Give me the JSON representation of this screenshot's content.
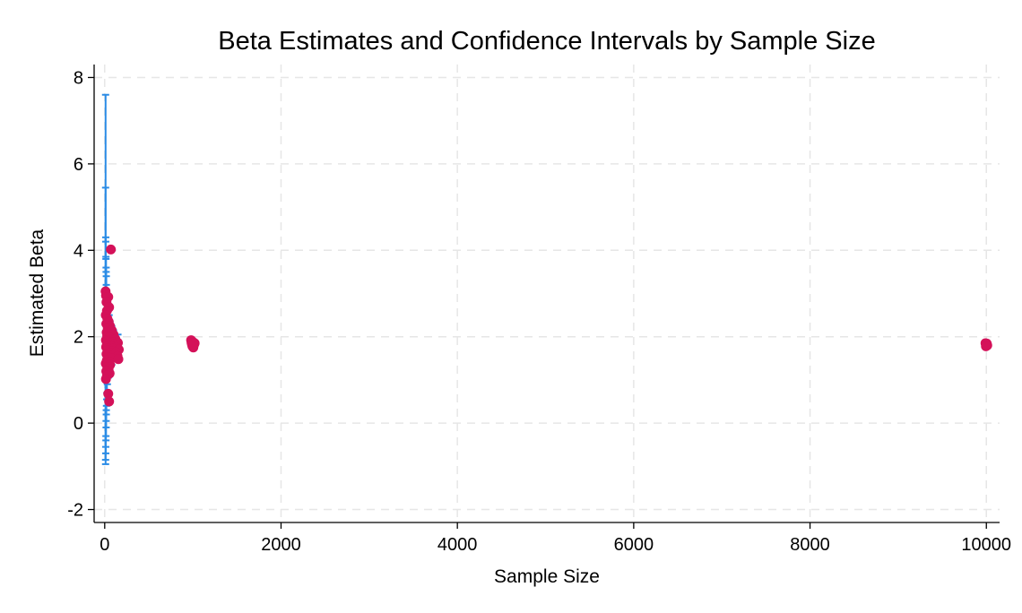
{
  "chart_data": {
    "type": "scatter",
    "title": "Beta Estimates and Confidence Intervals by Sample Size",
    "xlabel": "Sample Size",
    "ylabel": "Estimated Beta",
    "xlim": [
      -120,
      10150
    ],
    "ylim": [
      -2.3,
      8.3
    ],
    "xticks": [
      0,
      2000,
      4000,
      6000,
      8000,
      10000
    ],
    "yticks": [
      -2,
      0,
      2,
      4,
      6,
      8
    ],
    "grid": true,
    "colors": {
      "ci": "#2b8ce6",
      "point": "#d41159",
      "grid": "#e6e6e6"
    },
    "series": [
      {
        "type": "errorbar",
        "points": [
          {
            "x": 10,
            "lo": -0.95,
            "hi": 7.6
          },
          {
            "x": 10,
            "lo": -0.85,
            "hi": 5.45
          },
          {
            "x": 12,
            "lo": -0.7,
            "hi": 4.3
          },
          {
            "x": 12,
            "lo": -0.55,
            "hi": 4.2
          },
          {
            "x": 14,
            "lo": -0.4,
            "hi": 3.85
          },
          {
            "x": 14,
            "lo": -0.3,
            "hi": 3.8
          },
          {
            "x": 16,
            "lo": -0.1,
            "hi": 3.6
          },
          {
            "x": 16,
            "lo": 0.05,
            "hi": 3.5
          },
          {
            "x": 18,
            "lo": 0.2,
            "hi": 3.4
          },
          {
            "x": 18,
            "lo": 0.3,
            "hi": 3.2
          },
          {
            "x": 20,
            "lo": 0.4,
            "hi": 3.05
          },
          {
            "x": 22,
            "lo": 0.55,
            "hi": 2.95
          },
          {
            "x": 25,
            "lo": 0.7,
            "hi": 2.85
          },
          {
            "x": 30,
            "lo": 0.9,
            "hi": 2.75
          },
          {
            "x": 40,
            "lo": 1.05,
            "hi": 2.6
          },
          {
            "x": 50,
            "lo": 1.1,
            "hi": 2.5
          },
          {
            "x": 60,
            "lo": 1.2,
            "hi": 2.35
          },
          {
            "x": 80,
            "lo": 1.35,
            "hi": 2.25
          },
          {
            "x": 100,
            "lo": 1.45,
            "hi": 2.15
          },
          {
            "x": 150,
            "lo": 1.55,
            "hi": 2.05
          }
        ]
      },
      {
        "type": "point",
        "points": [
          {
            "x": 70,
            "y": 4.02
          },
          {
            "x": 10,
            "y": 3.05
          },
          {
            "x": 15,
            "y": 2.95
          },
          {
            "x": 40,
            "y": 2.92
          },
          {
            "x": 20,
            "y": 2.8
          },
          {
            "x": 50,
            "y": 2.68
          },
          {
            "x": 25,
            "y": 2.6
          },
          {
            "x": 12,
            "y": 2.5
          },
          {
            "x": 30,
            "y": 2.42
          },
          {
            "x": 45,
            "y": 2.35
          },
          {
            "x": 18,
            "y": 2.3
          },
          {
            "x": 60,
            "y": 2.25
          },
          {
            "x": 35,
            "y": 2.2
          },
          {
            "x": 80,
            "y": 2.15
          },
          {
            "x": 22,
            "y": 2.1
          },
          {
            "x": 100,
            "y": 2.05
          },
          {
            "x": 28,
            "y": 2.02
          },
          {
            "x": 55,
            "y": 1.98
          },
          {
            "x": 120,
            "y": 1.95
          },
          {
            "x": 14,
            "y": 1.92
          },
          {
            "x": 38,
            "y": 1.9
          },
          {
            "x": 90,
            "y": 1.88
          },
          {
            "x": 150,
            "y": 1.86
          },
          {
            "x": 65,
            "y": 1.85
          },
          {
            "x": 26,
            "y": 1.83
          },
          {
            "x": 110,
            "y": 1.82
          },
          {
            "x": 48,
            "y": 1.8
          },
          {
            "x": 140,
            "y": 1.79
          },
          {
            "x": 75,
            "y": 1.78
          },
          {
            "x": 16,
            "y": 1.76
          },
          {
            "x": 130,
            "y": 1.75
          },
          {
            "x": 42,
            "y": 1.73
          },
          {
            "x": 95,
            "y": 1.72
          },
          {
            "x": 160,
            "y": 1.7
          },
          {
            "x": 32,
            "y": 1.68
          },
          {
            "x": 85,
            "y": 1.66
          },
          {
            "x": 125,
            "y": 1.64
          },
          {
            "x": 58,
            "y": 1.62
          },
          {
            "x": 20,
            "y": 1.6
          },
          {
            "x": 105,
            "y": 1.58
          },
          {
            "x": 145,
            "y": 1.55
          },
          {
            "x": 36,
            "y": 1.52
          },
          {
            "x": 70,
            "y": 1.5
          },
          {
            "x": 155,
            "y": 1.48
          },
          {
            "x": 24,
            "y": 1.45
          },
          {
            "x": 52,
            "y": 1.42
          },
          {
            "x": 12,
            "y": 1.38
          },
          {
            "x": 62,
            "y": 1.35
          },
          {
            "x": 30,
            "y": 1.3
          },
          {
            "x": 44,
            "y": 1.25
          },
          {
            "x": 18,
            "y": 1.2
          },
          {
            "x": 56,
            "y": 1.15
          },
          {
            "x": 26,
            "y": 1.1
          },
          {
            "x": 14,
            "y": 1.02
          },
          {
            "x": 40,
            "y": 0.68
          },
          {
            "x": 50,
            "y": 0.5
          },
          {
            "x": 980,
            "y": 1.92
          },
          {
            "x": 1000,
            "y": 1.88
          },
          {
            "x": 1020,
            "y": 1.85
          },
          {
            "x": 990,
            "y": 1.82
          },
          {
            "x": 1010,
            "y": 1.8
          },
          {
            "x": 995,
            "y": 1.78
          },
          {
            "x": 1005,
            "y": 1.75
          },
          {
            "x": 985,
            "y": 1.86
          },
          {
            "x": 1015,
            "y": 1.83
          },
          {
            "x": 1000,
            "y": 1.79
          },
          {
            "x": 9990,
            "y": 1.85
          },
          {
            "x": 10000,
            "y": 1.82
          },
          {
            "x": 10010,
            "y": 1.8
          },
          {
            "x": 9995,
            "y": 1.78
          },
          {
            "x": 10005,
            "y": 1.84
          },
          {
            "x": 10000,
            "y": 1.79
          }
        ]
      }
    ]
  }
}
